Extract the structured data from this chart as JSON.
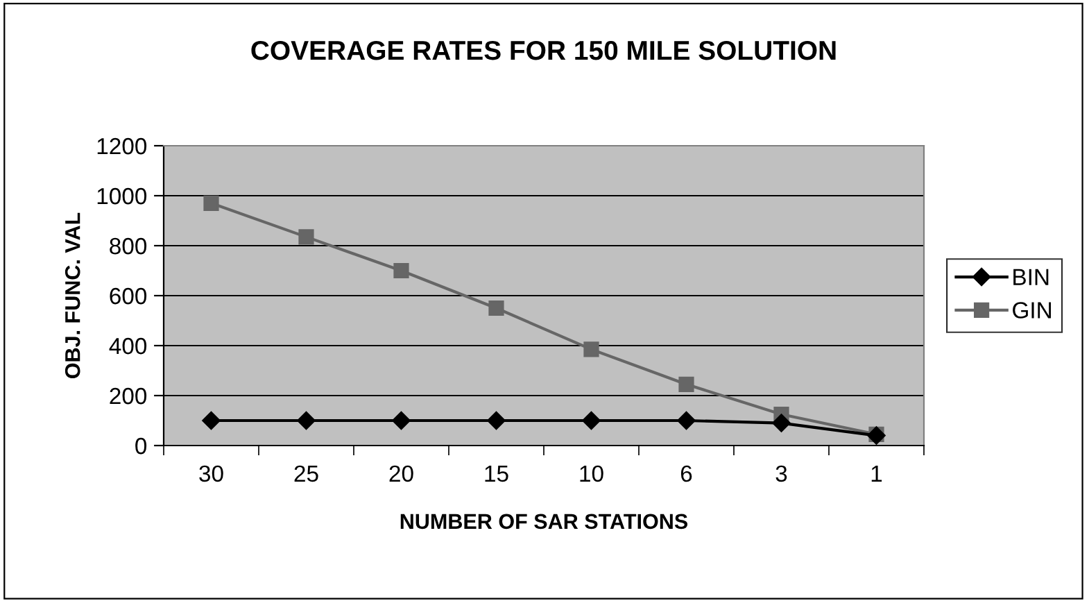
{
  "chart_data": {
    "type": "line",
    "title": "COVERAGE RATES FOR 150 MILE SOLUTION",
    "xlabel": "NUMBER OF SAR STATIONS",
    "ylabel": "OBJ. FUNC. VAL",
    "categories": [
      "30",
      "25",
      "20",
      "15",
      "10",
      "6",
      "3",
      "1"
    ],
    "series": [
      {
        "name": "BIN",
        "color": "#000000",
        "marker": "diamond",
        "values": [
          100,
          100,
          100,
          100,
          100,
          100,
          90,
          40
        ]
      },
      {
        "name": "GIN",
        "color": "#666666",
        "marker": "square",
        "values": [
          970,
          835,
          700,
          550,
          385,
          245,
          125,
          45
        ]
      }
    ],
    "ylim": [
      0,
      1200
    ],
    "yticks": [
      0,
      200,
      400,
      600,
      800,
      1000,
      1200
    ],
    "grid": "y",
    "legend": "right"
  }
}
